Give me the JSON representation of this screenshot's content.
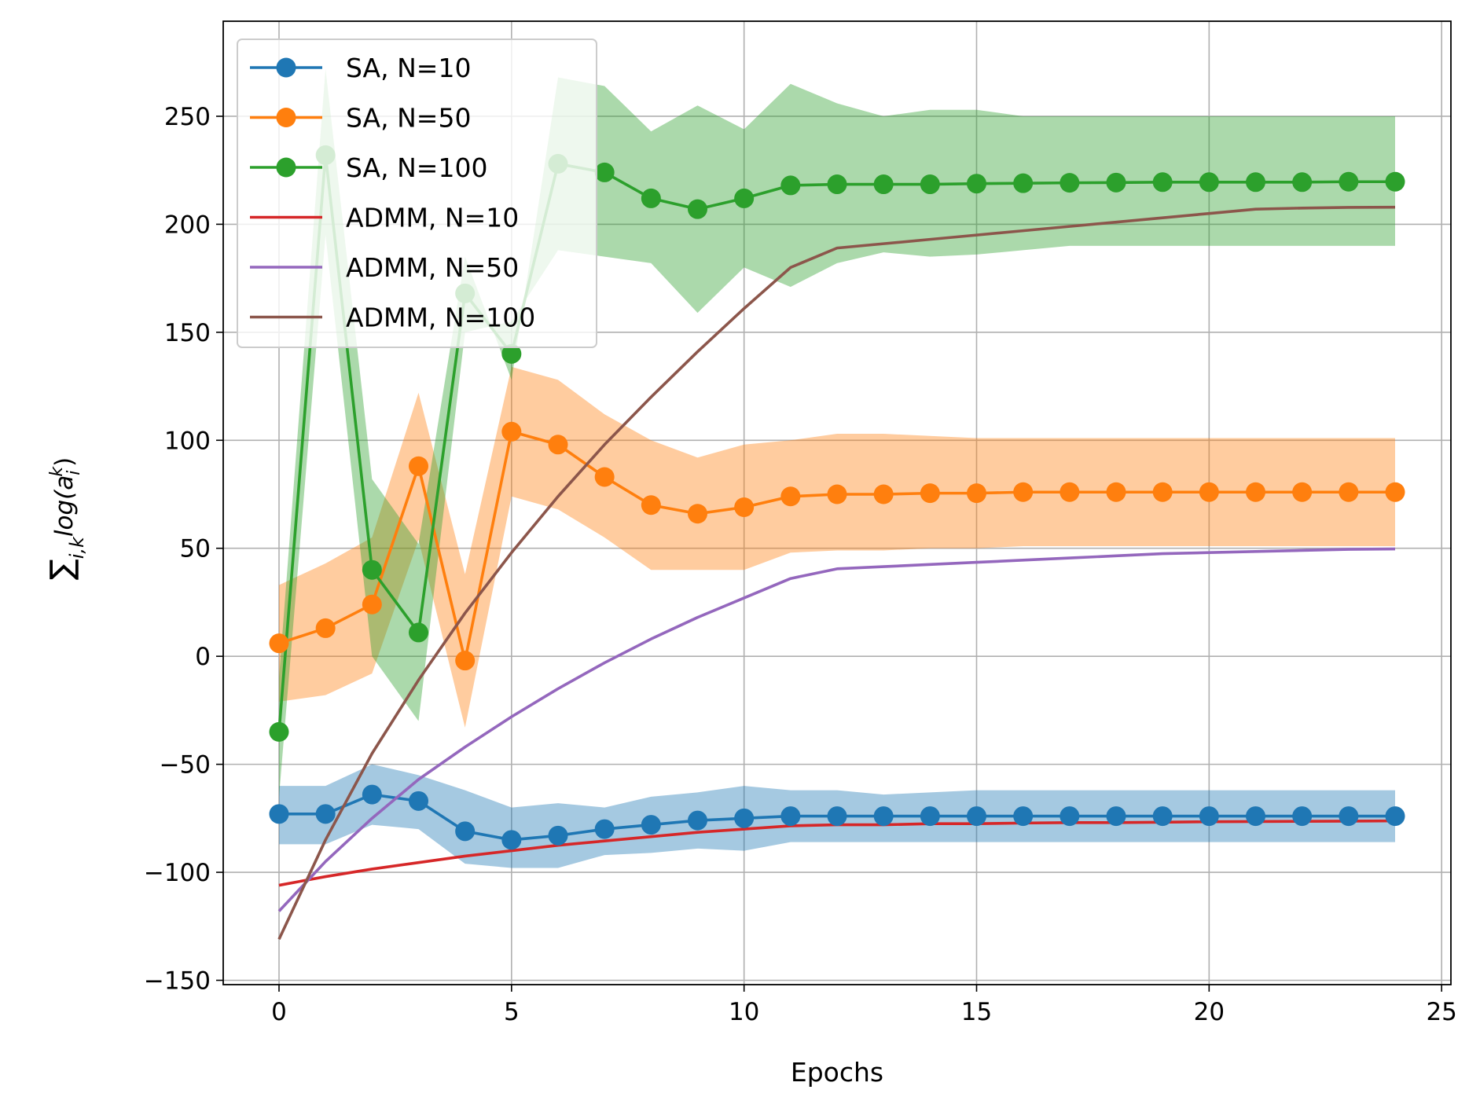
{
  "chart_data": {
    "type": "line",
    "title": "",
    "xlabel": "Epochs",
    "ylabel": "∑ log(a_i^k) over i,k",
    "ylabel_parts": {
      "sum": "∑",
      "sub": "i,k",
      "body": "log(a",
      "sub_i": "i",
      "sup_k": "k",
      "close": ")"
    },
    "xlim": [
      -1.2,
      25.2
    ],
    "ylim": [
      -152,
      294
    ],
    "xticks": [
      0,
      5,
      10,
      15,
      20,
      25
    ],
    "yticks": [
      -150,
      -100,
      -50,
      0,
      50,
      100,
      150,
      200,
      250
    ],
    "ytick_labels": [
      "−150",
      "−100",
      "−50",
      "0",
      "50",
      "100",
      "150",
      "200",
      "250"
    ],
    "grid": true,
    "legend_position": "upper-left",
    "x": [
      0,
      1,
      2,
      3,
      4,
      5,
      6,
      7,
      8,
      9,
      10,
      11,
      12,
      13,
      14,
      15,
      16,
      17,
      18,
      19,
      20,
      21,
      22,
      23,
      24
    ],
    "series": [
      {
        "name": "SA, N=10",
        "color": "#1f77b4",
        "markers": true,
        "values": [
          -73,
          -73,
          -64,
          -67,
          -81,
          -85,
          -83,
          -80,
          -78,
          -76,
          -75,
          -74,
          -74,
          -74,
          -74,
          -74,
          -74,
          -74,
          -74,
          -74,
          -74,
          -74,
          -74,
          -74,
          -74
        ],
        "band_upper": [
          -60,
          -60,
          -50,
          -55,
          -62,
          -70,
          -68,
          -70,
          -65,
          -63,
          -60,
          -62,
          -62,
          -64,
          -63,
          -62,
          -62,
          -62,
          -62,
          -62,
          -62,
          -62,
          -62,
          -62,
          -62
        ],
        "band_lower": [
          -87,
          -87,
          -78,
          -80,
          -96,
          -98,
          -98,
          -92,
          -91,
          -89,
          -90,
          -86,
          -86,
          -86,
          -86,
          -86,
          -86,
          -86,
          -86,
          -86,
          -86,
          -86,
          -86,
          -86,
          -86
        ]
      },
      {
        "name": "SA, N=50",
        "color": "#ff7f0e",
        "markers": true,
        "values": [
          6,
          13,
          24,
          88,
          -2,
          104,
          98,
          83,
          70,
          66,
          69,
          74,
          75,
          75,
          75.5,
          75.5,
          76,
          76,
          76,
          76,
          76,
          76,
          76,
          76,
          76
        ],
        "band_upper": [
          33,
          43,
          55,
          122,
          38,
          134,
          128,
          112,
          100,
          92,
          98,
          100,
          103,
          103,
          102,
          101,
          101,
          101,
          101,
          101,
          101,
          101,
          101,
          101,
          101
        ],
        "band_lower": [
          -21,
          -18,
          -8,
          54,
          -33,
          74,
          68,
          55,
          40,
          40,
          40,
          48,
          49,
          49,
          50,
          50,
          51,
          51,
          51,
          51,
          51,
          51,
          51,
          51,
          51
        ]
      },
      {
        "name": "SA, N=100",
        "color": "#2ca02c",
        "markers": true,
        "values": [
          -35,
          232,
          40,
          11,
          168,
          140,
          228,
          224,
          212,
          207,
          212,
          218,
          218.5,
          218.5,
          218.5,
          218.8,
          219,
          219.2,
          219.3,
          219.5,
          219.5,
          219.5,
          219.5,
          219.7,
          219.7
        ],
        "band_upper": [
          -10,
          272,
          82,
          52,
          185,
          128,
          268,
          264,
          243,
          255,
          244,
          265,
          256,
          250,
          253,
          253,
          250,
          250,
          250,
          250,
          250,
          250,
          250,
          250,
          250
        ],
        "band_lower": [
          -65,
          195,
          0,
          -30,
          150,
          155,
          188,
          185,
          182,
          159,
          180,
          171,
          182,
          187,
          185,
          186,
          188,
          190,
          190,
          190,
          190,
          190,
          190,
          190,
          190
        ]
      },
      {
        "name": "ADMM, N=10",
        "color": "#d62728",
        "markers": false,
        "values": [
          -106,
          -102,
          -98.5,
          -95.5,
          -92.5,
          -90,
          -87.5,
          -85.5,
          -83.5,
          -81.5,
          -80,
          -78.5,
          -78,
          -78,
          -77.5,
          -77.5,
          -77.2,
          -77,
          -77,
          -76.8,
          -76.6,
          -76.5,
          -76.4,
          -76.3,
          -76.2
        ]
      },
      {
        "name": "ADMM, N=50",
        "color": "#9467bd",
        "markers": false,
        "values": [
          -118,
          -95,
          -75,
          -57,
          -42,
          -28,
          -15,
          -3,
          8,
          18,
          27,
          36,
          40.5,
          41.5,
          42.5,
          43.5,
          44.5,
          45.5,
          46.5,
          47.5,
          48,
          48.5,
          49,
          49.5,
          49.7
        ]
      },
      {
        "name": "ADMM, N=100",
        "color": "#8c564b",
        "markers": false,
        "values": [
          -131,
          -85,
          -45,
          -11,
          20,
          48,
          74,
          98,
          120,
          141,
          161,
          180,
          189,
          191,
          193,
          195,
          197,
          199,
          201,
          203,
          205,
          207,
          207.5,
          207.8,
          207.9
        ]
      }
    ]
  }
}
